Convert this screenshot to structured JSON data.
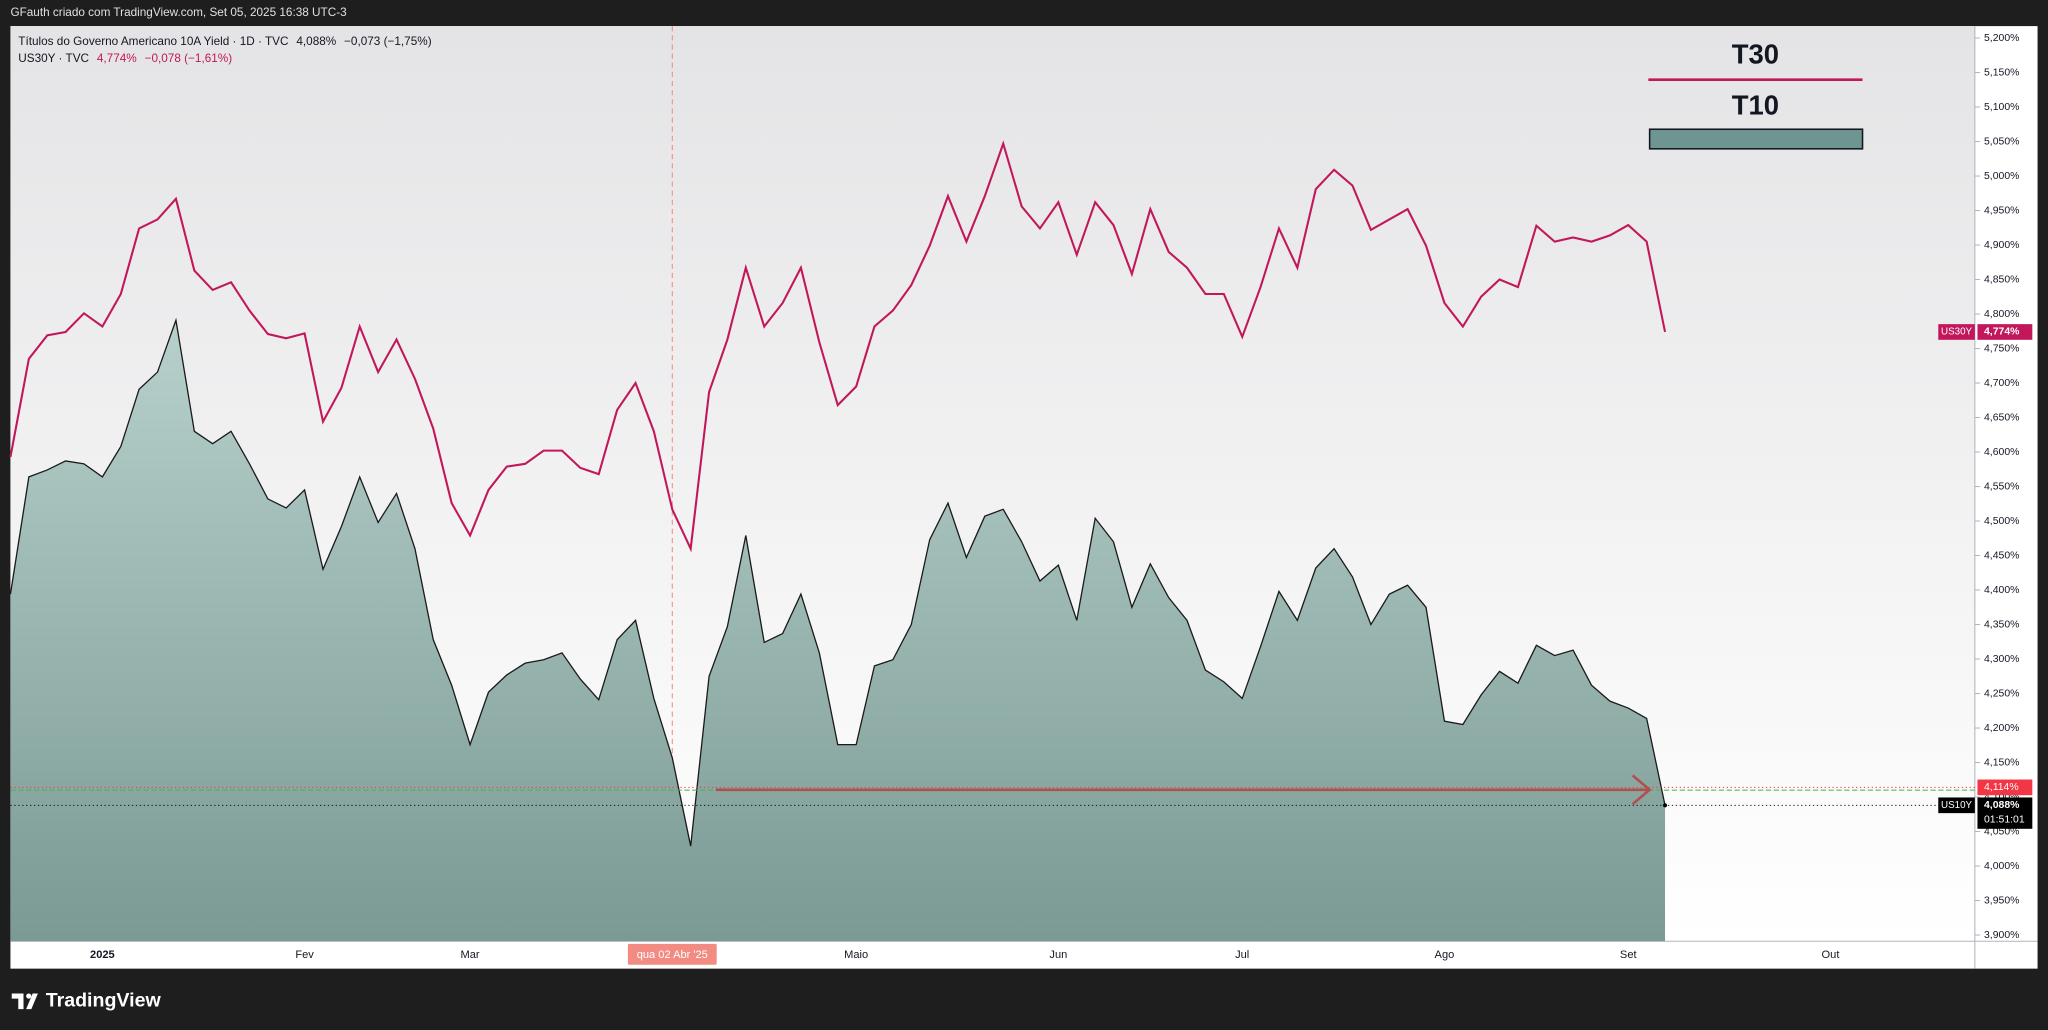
{
  "header": {
    "caption": "GFauth criado com TradingView.com, Set 05, 2025 16:38 UTC-3",
    "logo": "TradingView"
  },
  "chart_data": {
    "type": "line",
    "symbols": [
      {
        "name": "Títulos do Governo Americano 10A Yield · 1D · TVC",
        "last": "4,088%",
        "change": "−0,073 (−1,75%)",
        "color": "#131722"
      },
      {
        "name": "US30Y · TVC",
        "last": "4,774%",
        "change": "−0,078 (−1,61%)",
        "color": "#c2185b"
      }
    ],
    "categories": [
      null,
      null,
      null,
      null,
      null,
      "2025",
      null,
      null,
      null,
      null,
      null,
      null,
      null,
      null,
      null,
      null,
      "Fev",
      null,
      null,
      null,
      null,
      null,
      null,
      null,
      null,
      "Mar",
      null,
      null,
      null,
      null,
      null,
      null,
      null,
      null,
      null,
      null,
      "qua 02 Abr '25",
      null,
      null,
      null,
      null,
      null,
      null,
      null,
      null,
      null,
      "Maio",
      null,
      null,
      null,
      null,
      null,
      null,
      null,
      null,
      null,
      null,
      "Jun",
      null,
      null,
      null,
      null,
      null,
      null,
      null,
      null,
      null,
      "Jul",
      null,
      null,
      null,
      null,
      null,
      null,
      null,
      null,
      null,
      null,
      "Ago",
      null,
      null,
      null,
      null,
      null,
      null,
      null,
      null,
      null,
      "Set",
      null,
      null,
      null,
      null,
      null,
      null,
      null,
      null,
      null,
      null,
      "Out",
      null,
      null,
      null,
      null,
      null,
      null,
      null
    ],
    "crosshair_index": 36,
    "series": [
      {
        "name": "T30",
        "color": "#c2185b",
        "style": "line",
        "tag": "US30Y",
        "tag_label": "4,774%",
        "tag_color": "#c2185b",
        "values": [
          4.593,
          4.735,
          4.769,
          4.774,
          4.801,
          4.782,
          4.829,
          4.924,
          4.937,
          4.967,
          4.863,
          4.835,
          4.846,
          4.805,
          4.771,
          4.765,
          4.772,
          4.644,
          4.693,
          4.782,
          4.716,
          4.763,
          4.706,
          4.634,
          4.526,
          4.479,
          4.545,
          4.579,
          4.583,
          4.602,
          4.602,
          4.577,
          4.568,
          4.661,
          4.7,
          4.63,
          4.517,
          4.46,
          4.687,
          4.763,
          4.867,
          4.782,
          4.816,
          4.867,
          4.759,
          4.668,
          4.695,
          4.782,
          4.805,
          4.842,
          4.899,
          4.971,
          4.905,
          4.971,
          5.047,
          4.956,
          4.924,
          4.962,
          4.886,
          4.962,
          4.929,
          4.858,
          4.952,
          4.89,
          4.867,
          4.829,
          4.829,
          4.767,
          4.839,
          4.924,
          4.867,
          4.981,
          5.009,
          4.986,
          4.922,
          4.937,
          4.952,
          4.899,
          4.816,
          4.782,
          4.825,
          4.85,
          4.839,
          4.928,
          4.905,
          4.911,
          4.905,
          4.914,
          4.929,
          4.905,
          4.774,
          null,
          null,
          null,
          null,
          null,
          null,
          null,
          null,
          null,
          null,
          null,
          null,
          null,
          null,
          null,
          null
        ]
      },
      {
        "name": "T10",
        "color": "#6f9590",
        "style": "area",
        "tag": "US10Y",
        "tag_label": "4,088%",
        "tag_color": "#000000",
        "countdown": "01:51:01",
        "values": [
          4.394,
          4.564,
          4.574,
          4.587,
          4.583,
          4.564,
          4.608,
          4.691,
          4.716,
          4.791,
          4.63,
          4.612,
          4.63,
          4.583,
          4.532,
          4.519,
          4.545,
          4.43,
          4.492,
          4.564,
          4.498,
          4.54,
          4.46,
          4.328,
          4.262,
          4.176,
          4.252,
          4.277,
          4.294,
          4.299,
          4.309,
          4.271,
          4.241,
          4.328,
          4.356,
          4.243,
          4.157,
          4.029,
          4.275,
          4.347,
          4.479,
          4.324,
          4.337,
          4.394,
          4.309,
          4.176,
          4.176,
          4.29,
          4.299,
          4.35,
          4.473,
          4.526,
          4.447,
          4.507,
          4.517,
          4.47,
          4.413,
          4.436,
          4.356,
          4.504,
          4.47,
          4.375,
          4.438,
          4.389,
          4.356,
          4.284,
          4.267,
          4.243,
          4.318,
          4.398,
          4.356,
          4.432,
          4.46,
          4.419,
          4.35,
          4.394,
          4.407,
          4.375,
          4.21,
          4.205,
          4.248,
          4.282,
          4.265,
          4.32,
          4.305,
          4.313,
          4.262,
          4.239,
          4.229,
          4.214,
          4.088,
          null,
          null,
          null,
          null,
          null,
          null,
          null,
          null,
          null,
          null,
          null,
          null,
          null,
          null,
          null,
          null
        ]
      }
    ],
    "ylim": [
      3.891,
      5.24
    ],
    "yticks": [
      {
        "value": 3.9,
        "label": "3,900%"
      },
      {
        "value": 3.95,
        "label": "3,950%"
      },
      {
        "value": 4.0,
        "label": "4,000%"
      },
      {
        "value": 4.05,
        "label": "4,050%"
      },
      {
        "value": 4.1,
        "label": "4,100%"
      },
      {
        "value": 4.15,
        "label": "4,150%"
      },
      {
        "value": 4.2,
        "label": "4,200%"
      },
      {
        "value": 4.25,
        "label": "4,250%"
      },
      {
        "value": 4.3,
        "label": "4,300%"
      },
      {
        "value": 4.35,
        "label": "4,350%"
      },
      {
        "value": 4.4,
        "label": "4,400%"
      },
      {
        "value": 4.45,
        "label": "4,450%"
      },
      {
        "value": 4.5,
        "label": "4,500%"
      },
      {
        "value": 4.55,
        "label": "4,550%"
      },
      {
        "value": 4.6,
        "label": "4,600%"
      },
      {
        "value": 4.65,
        "label": "4,650%"
      },
      {
        "value": 4.7,
        "label": "4,700%"
      },
      {
        "value": 4.75,
        "label": "4,750%"
      },
      {
        "value": 4.8,
        "label": "4,800%"
      },
      {
        "value": 4.85,
        "label": "4,850%"
      },
      {
        "value": 4.9,
        "label": "4,900%"
      },
      {
        "value": 4.95,
        "label": "4,950%"
      },
      {
        "value": 5.0,
        "label": "5,000%"
      },
      {
        "value": 5.05,
        "label": "5,050%"
      },
      {
        "value": 5.1,
        "label": "5,100%"
      },
      {
        "value": 5.15,
        "label": "5,150%"
      },
      {
        "value": 5.2,
        "label": "5,200%"
      }
    ],
    "price_lines": [
      {
        "value": 4.114,
        "label": "4,114%",
        "color": "#f23645"
      },
      {
        "value": 4.11,
        "color": "#4caf50"
      }
    ],
    "legend": "top-right"
  }
}
